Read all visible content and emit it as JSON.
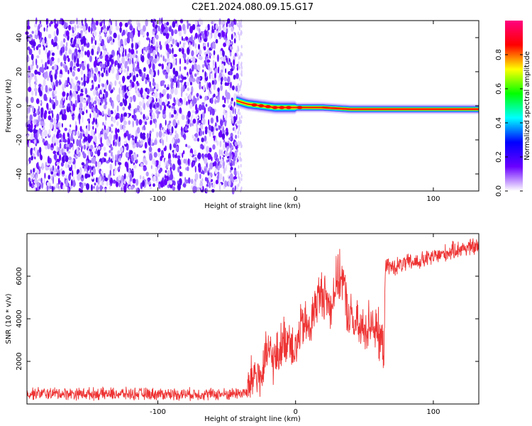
{
  "title": "C2E1.2024.080.09.15.G17",
  "chart_data": [
    {
      "type": "heatmap",
      "title": "C2E1.2024.080.09.15.G17",
      "xlabel": "Height of straight line (km)",
      "ylabel": "Frequency (Hz)",
      "xlim": [
        -195,
        133
      ],
      "ylim": [
        -50,
        50
      ],
      "x_ticks": [
        -100,
        0,
        100
      ],
      "y_ticks": [
        -40,
        -20,
        0,
        20,
        40
      ],
      "noise_region_x": [
        -195,
        -42
      ],
      "signal_ridge": {
        "x": [
          -43,
          -35,
          -25,
          -15,
          -5,
          5,
          20,
          40,
          60,
          80,
          95,
          110,
          133
        ],
        "frequency": [
          3,
          1,
          0,
          -1,
          -1,
          -1,
          -1,
          -2,
          -2,
          -2,
          -2,
          -2,
          -2
        ]
      },
      "colorbar": {
        "label": "Normalized spectral amplitude",
        "range": [
          0,
          1
        ],
        "ticks": [
          0.0,
          0.2,
          0.4,
          0.6,
          0.8
        ],
        "colors": [
          "#ffffff",
          "#6a00ff",
          "#0000ff",
          "#00ffff",
          "#00ff00",
          "#ffff00",
          "#ff0000",
          "#ff0080"
        ]
      }
    },
    {
      "type": "line",
      "xlabel": "Height of straight line (km)",
      "ylabel": "SNR (10 * v/v)",
      "xlim": [
        -195,
        133
      ],
      "ylim": [
        0,
        8000
      ],
      "x_ticks": [
        -100,
        0,
        100
      ],
      "y_ticks": [
        2000,
        4000,
        6000
      ],
      "color": "#ee3333",
      "series": [
        {
          "x": [
            -195,
            -150,
            -100,
            -50,
            -35,
            -30,
            -25,
            -20,
            -15,
            -10,
            -5,
            0,
            5,
            10,
            15,
            20,
            25,
            30,
            34,
            38,
            45,
            50,
            55,
            60,
            62,
            64,
            65,
            68,
            70,
            80,
            90,
            100,
            110,
            120,
            133
          ],
          "y": [
            500,
            480,
            470,
            460,
            550,
            1500,
            1200,
            2500,
            2000,
            2800,
            3200,
            2500,
            3800,
            3500,
            4800,
            5300,
            4500,
            5800,
            6000,
            4200,
            3600,
            3400,
            4000,
            3200,
            3000,
            2300,
            6300,
            6500,
            6400,
            6600,
            6700,
            6900,
            7100,
            7300,
            7400
          ]
        }
      ]
    }
  ]
}
